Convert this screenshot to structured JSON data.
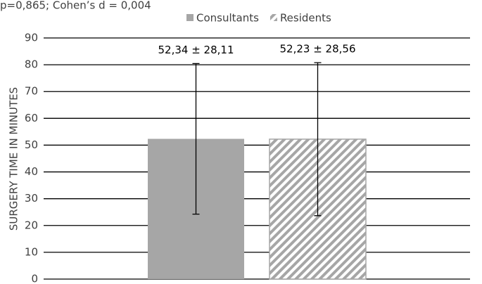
{
  "chart_data": {
    "type": "bar",
    "title": "p=0,865; Cohen’s d = 0,004",
    "y_label": "SURGERY TIME IN MINUTES",
    "categories": [
      null
    ],
    "series": [
      {
        "name": "Consultants",
        "color": "#a6a6a6",
        "hatch": false,
        "values": [
          52.34
        ],
        "errors": [
          28.11
        ],
        "value_labels": [
          "52,34 ± 28,11"
        ]
      },
      {
        "name": "Residents",
        "color": "#a6a6a6",
        "hatch": true,
        "values": [
          52.23
        ],
        "errors": [
          28.56
        ],
        "value_labels": [
          "52,23 ± 28,56"
        ]
      }
    ],
    "ylim": [
      0,
      90
    ],
    "yticks": [
      0,
      10,
      20,
      30,
      40,
      50,
      60,
      70,
      80,
      90
    ],
    "grid": true,
    "legend": "top"
  }
}
